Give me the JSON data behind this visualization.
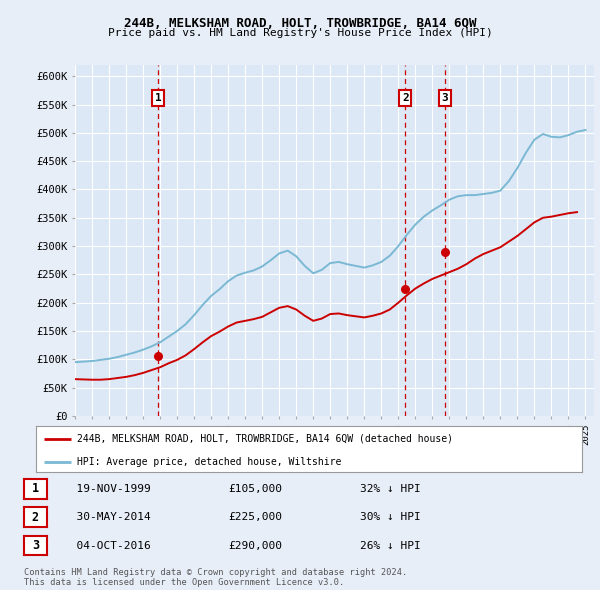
{
  "title": "244B, MELKSHAM ROAD, HOLT, TROWBRIDGE, BA14 6QW",
  "subtitle": "Price paid vs. HM Land Registry's House Price Index (HPI)",
  "bg_color": "#e8eef8",
  "plot_bg_color": "#dce8f5",
  "grid_color": "#ffffff",
  "hpi_color": "#7ab8d4",
  "price_color": "#cc0000",
  "ylim": [
    0,
    620000
  ],
  "yticks": [
    0,
    50000,
    100000,
    150000,
    200000,
    250000,
    300000,
    350000,
    400000,
    450000,
    500000,
    550000,
    600000
  ],
  "ytick_labels": [
    "£0",
    "£50K",
    "£100K",
    "£150K",
    "£200K",
    "£250K",
    "£300K",
    "£350K",
    "£400K",
    "£450K",
    "£500K",
    "£550K",
    "£600K"
  ],
  "xlim_start": 1995.0,
  "xlim_end": 2025.5,
  "xticks": [
    1995,
    1996,
    1997,
    1998,
    1999,
    2000,
    2001,
    2002,
    2003,
    2004,
    2005,
    2006,
    2007,
    2008,
    2009,
    2010,
    2011,
    2012,
    2013,
    2014,
    2015,
    2016,
    2017,
    2018,
    2019,
    2020,
    2021,
    2022,
    2023,
    2024,
    2025
  ],
  "hpi_data": [
    [
      1995.0,
      95000
    ],
    [
      1995.5,
      96000
    ],
    [
      1996.0,
      97000
    ],
    [
      1996.5,
      99000
    ],
    [
      1997.0,
      101000
    ],
    [
      1997.5,
      104000
    ],
    [
      1998.0,
      108000
    ],
    [
      1998.5,
      112000
    ],
    [
      1999.0,
      117000
    ],
    [
      1999.5,
      123000
    ],
    [
      2000.0,
      130000
    ],
    [
      2000.5,
      140000
    ],
    [
      2001.0,
      150000
    ],
    [
      2001.5,
      162000
    ],
    [
      2002.0,
      178000
    ],
    [
      2002.5,
      196000
    ],
    [
      2003.0,
      212000
    ],
    [
      2003.5,
      224000
    ],
    [
      2004.0,
      238000
    ],
    [
      2004.5,
      248000
    ],
    [
      2005.0,
      253000
    ],
    [
      2005.5,
      257000
    ],
    [
      2006.0,
      264000
    ],
    [
      2006.5,
      275000
    ],
    [
      2007.0,
      287000
    ],
    [
      2007.5,
      292000
    ],
    [
      2008.0,
      282000
    ],
    [
      2008.5,
      265000
    ],
    [
      2009.0,
      252000
    ],
    [
      2009.5,
      258000
    ],
    [
      2010.0,
      270000
    ],
    [
      2010.5,
      272000
    ],
    [
      2011.0,
      268000
    ],
    [
      2011.5,
      265000
    ],
    [
      2012.0,
      262000
    ],
    [
      2012.5,
      266000
    ],
    [
      2013.0,
      272000
    ],
    [
      2013.5,
      283000
    ],
    [
      2014.0,
      300000
    ],
    [
      2014.5,
      320000
    ],
    [
      2015.0,
      338000
    ],
    [
      2015.5,
      352000
    ],
    [
      2016.0,
      363000
    ],
    [
      2016.5,
      372000
    ],
    [
      2017.0,
      382000
    ],
    [
      2017.5,
      388000
    ],
    [
      2018.0,
      390000
    ],
    [
      2018.5,
      390000
    ],
    [
      2019.0,
      392000
    ],
    [
      2019.5,
      394000
    ],
    [
      2020.0,
      398000
    ],
    [
      2020.5,
      415000
    ],
    [
      2021.0,
      438000
    ],
    [
      2021.5,
      465000
    ],
    [
      2022.0,
      488000
    ],
    [
      2022.5,
      498000
    ],
    [
      2023.0,
      493000
    ],
    [
      2023.5,
      492000
    ],
    [
      2024.0,
      496000
    ],
    [
      2024.5,
      502000
    ],
    [
      2025.0,
      505000
    ]
  ],
  "price_data": [
    [
      1995.0,
      65000
    ],
    [
      1995.5,
      64500
    ],
    [
      1996.0,
      64000
    ],
    [
      1996.5,
      64000
    ],
    [
      1997.0,
      65000
    ],
    [
      1997.5,
      67000
    ],
    [
      1998.0,
      69000
    ],
    [
      1998.5,
      72000
    ],
    [
      1999.0,
      76000
    ],
    [
      1999.5,
      81000
    ],
    [
      2000.0,
      86000
    ],
    [
      2000.5,
      93000
    ],
    [
      2001.0,
      99000
    ],
    [
      2001.5,
      107000
    ],
    [
      2002.0,
      118000
    ],
    [
      2002.5,
      130000
    ],
    [
      2003.0,
      141000
    ],
    [
      2003.5,
      149000
    ],
    [
      2004.0,
      158000
    ],
    [
      2004.5,
      165000
    ],
    [
      2005.0,
      168000
    ],
    [
      2005.5,
      171000
    ],
    [
      2006.0,
      175000
    ],
    [
      2006.5,
      183000
    ],
    [
      2007.0,
      191000
    ],
    [
      2007.5,
      194000
    ],
    [
      2008.0,
      188000
    ],
    [
      2008.5,
      177000
    ],
    [
      2009.0,
      168000
    ],
    [
      2009.5,
      172000
    ],
    [
      2010.0,
      180000
    ],
    [
      2010.5,
      181000
    ],
    [
      2011.0,
      178000
    ],
    [
      2011.5,
      176000
    ],
    [
      2012.0,
      174000
    ],
    [
      2012.5,
      177000
    ],
    [
      2013.0,
      181000
    ],
    [
      2013.5,
      188000
    ],
    [
      2014.0,
      200000
    ],
    [
      2014.5,
      213000
    ],
    [
      2015.0,
      225000
    ],
    [
      2015.5,
      234000
    ],
    [
      2016.0,
      242000
    ],
    [
      2016.5,
      248000
    ],
    [
      2017.0,
      254000
    ],
    [
      2017.5,
      260000
    ],
    [
      2018.0,
      268000
    ],
    [
      2018.5,
      278000
    ],
    [
      2019.0,
      286000
    ],
    [
      2019.5,
      292000
    ],
    [
      2020.0,
      298000
    ],
    [
      2020.5,
      308000
    ],
    [
      2021.0,
      318000
    ],
    [
      2021.5,
      330000
    ],
    [
      2022.0,
      342000
    ],
    [
      2022.5,
      350000
    ],
    [
      2023.0,
      352000
    ],
    [
      2023.5,
      355000
    ],
    [
      2024.0,
      358000
    ],
    [
      2024.5,
      360000
    ]
  ],
  "transactions": [
    {
      "num": 1,
      "year": 1999.88,
      "price": 105000,
      "date": "19-NOV-1999",
      "amount": "£105,000",
      "pct": "32% ↓ HPI"
    },
    {
      "num": 2,
      "year": 2014.41,
      "price": 225000,
      "date": "30-MAY-2014",
      "amount": "£225,000",
      "pct": "30% ↓ HPI"
    },
    {
      "num": 3,
      "year": 2016.75,
      "price": 290000,
      "date": "04-OCT-2016",
      "amount": "£290,000",
      "pct": "26% ↓ HPI"
    }
  ],
  "legend_label_price": "244B, MELKSHAM ROAD, HOLT, TROWBRIDGE, BA14 6QW (detached house)",
  "legend_label_hpi": "HPI: Average price, detached house, Wiltshire",
  "footer": "Contains HM Land Registry data © Crown copyright and database right 2024.\nThis data is licensed under the Open Government Licence v3.0."
}
